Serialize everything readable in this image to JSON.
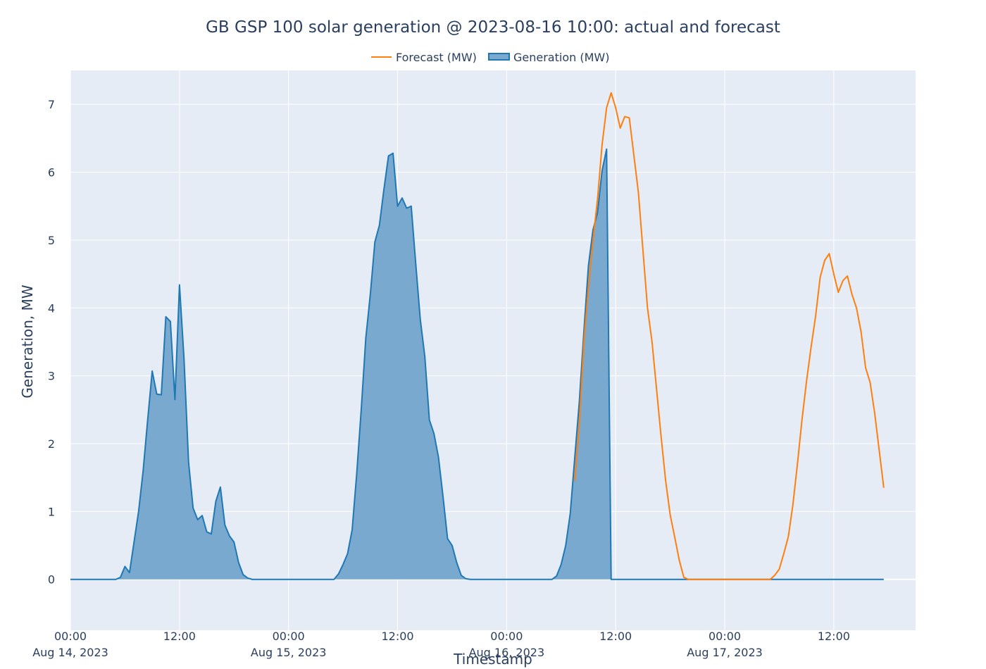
{
  "chart_data": {
    "type": "area",
    "title": "GB GSP 100 solar generation @ 2023-08-16 10:00: actual and forecast",
    "xlabel": "Timestamp",
    "ylabel": "Generation, MW",
    "ylim": [
      -0.75,
      7.5
    ],
    "xlim": [
      "2023-08-14 00:00",
      "2023-08-17 21:00"
    ],
    "grid": true,
    "legend_position": "top-center",
    "y_ticks": [
      "0",
      "1",
      "2",
      "3",
      "4",
      "5",
      "6",
      "7"
    ],
    "x_ticks": [
      {
        "time": "00:00",
        "date": "Aug 14, 2023"
      },
      {
        "time": "12:00",
        "date": ""
      },
      {
        "time": "00:00",
        "date": "Aug 15, 2023"
      },
      {
        "time": "12:00",
        "date": ""
      },
      {
        "time": "00:00",
        "date": "Aug 16, 2023"
      },
      {
        "time": "12:00",
        "date": ""
      },
      {
        "time": "00:00",
        "date": "Aug 17, 2023"
      },
      {
        "time": "12:00",
        "date": ""
      }
    ],
    "colors": {
      "plot_bg": "#e5ecf6",
      "grid": "#ffffff",
      "generation_line": "#1f77b4",
      "generation_fill": "#7aa9d0",
      "forecast_line": "#ff7f0e"
    },
    "series": [
      {
        "name": "Forecast (MW)",
        "kind": "line",
        "points": [
          [
            "2023-08-16 07:30",
            1.45
          ],
          [
            "2023-08-16 08:00",
            2.3
          ],
          [
            "2023-08-16 08:30",
            3.5
          ],
          [
            "2023-08-16 09:00",
            4.3
          ],
          [
            "2023-08-16 09:30",
            5.0
          ],
          [
            "2023-08-16 10:00",
            5.6
          ],
          [
            "2023-08-16 10:30",
            6.4
          ],
          [
            "2023-08-16 11:00",
            6.95
          ],
          [
            "2023-08-16 11:30",
            7.17
          ],
          [
            "2023-08-16 12:00",
            6.95
          ],
          [
            "2023-08-16 12:30",
            6.65
          ],
          [
            "2023-08-16 13:00",
            6.82
          ],
          [
            "2023-08-16 13:30",
            6.8
          ],
          [
            "2023-08-16 14:00",
            6.25
          ],
          [
            "2023-08-16 14:30",
            5.7
          ],
          [
            "2023-08-16 15:00",
            4.85
          ],
          [
            "2023-08-16 15:30",
            4.0
          ],
          [
            "2023-08-16 16:00",
            3.5
          ],
          [
            "2023-08-16 16:30",
            2.8
          ],
          [
            "2023-08-16 17:00",
            2.1
          ],
          [
            "2023-08-16 17:30",
            1.45
          ],
          [
            "2023-08-16 18:00",
            0.95
          ],
          [
            "2023-08-16 18:30",
            0.62
          ],
          [
            "2023-08-16 19:00",
            0.28
          ],
          [
            "2023-08-16 19:30",
            0.03
          ],
          [
            "2023-08-16 20:00",
            0.0
          ],
          [
            "2023-08-17 05:00",
            0.0
          ],
          [
            "2023-08-17 05:30",
            0.06
          ],
          [
            "2023-08-17 06:00",
            0.15
          ],
          [
            "2023-08-17 06:30",
            0.38
          ],
          [
            "2023-08-17 07:00",
            0.63
          ],
          [
            "2023-08-17 07:30",
            1.1
          ],
          [
            "2023-08-17 08:00",
            1.7
          ],
          [
            "2023-08-17 08:30",
            2.35
          ],
          [
            "2023-08-17 09:00",
            2.92
          ],
          [
            "2023-08-17 09:30",
            3.42
          ],
          [
            "2023-08-17 10:00",
            3.88
          ],
          [
            "2023-08-17 10:30",
            4.45
          ],
          [
            "2023-08-17 11:00",
            4.7
          ],
          [
            "2023-08-17 11:30",
            4.8
          ],
          [
            "2023-08-17 12:00",
            4.5
          ],
          [
            "2023-08-17 12:30",
            4.23
          ],
          [
            "2023-08-17 13:00",
            4.4
          ],
          [
            "2023-08-17 13:30",
            4.47
          ],
          [
            "2023-08-17 14:00",
            4.2
          ],
          [
            "2023-08-17 14:30",
            4.0
          ],
          [
            "2023-08-17 15:00",
            3.65
          ],
          [
            "2023-08-17 15:30",
            3.12
          ],
          [
            "2023-08-17 16:00",
            2.9
          ],
          [
            "2023-08-17 16:30",
            2.45
          ],
          [
            "2023-08-17 17:00",
            1.9
          ],
          [
            "2023-08-17 17:30",
            1.35
          ]
        ]
      },
      {
        "name": "Generation (MW)",
        "kind": "area",
        "points": [
          [
            "2023-08-14 00:00",
            0.0
          ],
          [
            "2023-08-14 05:00",
            0.0
          ],
          [
            "2023-08-14 05:30",
            0.03
          ],
          [
            "2023-08-14 06:00",
            0.19
          ],
          [
            "2023-08-14 06:30",
            0.1
          ],
          [
            "2023-08-14 07:00",
            0.55
          ],
          [
            "2023-08-14 07:30",
            1.0
          ],
          [
            "2023-08-14 08:00",
            1.6
          ],
          [
            "2023-08-14 08:30",
            2.35
          ],
          [
            "2023-08-14 09:00",
            3.07
          ],
          [
            "2023-08-14 09:30",
            2.73
          ],
          [
            "2023-08-14 10:00",
            2.72
          ],
          [
            "2023-08-14 10:30",
            3.87
          ],
          [
            "2023-08-14 11:00",
            3.8
          ],
          [
            "2023-08-14 11:30",
            2.65
          ],
          [
            "2023-08-14 12:00",
            4.34
          ],
          [
            "2023-08-14 12:30",
            3.25
          ],
          [
            "2023-08-14 13:00",
            1.73
          ],
          [
            "2023-08-14 13:30",
            1.05
          ],
          [
            "2023-08-14 14:00",
            0.88
          ],
          [
            "2023-08-14 14:30",
            0.94
          ],
          [
            "2023-08-14 15:00",
            0.7
          ],
          [
            "2023-08-14 15:30",
            0.67
          ],
          [
            "2023-08-14 16:00",
            1.15
          ],
          [
            "2023-08-14 16:30",
            1.36
          ],
          [
            "2023-08-14 17:00",
            0.8
          ],
          [
            "2023-08-14 17:30",
            0.64
          ],
          [
            "2023-08-14 18:00",
            0.55
          ],
          [
            "2023-08-14 18:30",
            0.25
          ],
          [
            "2023-08-14 19:00",
            0.07
          ],
          [
            "2023-08-14 19:30",
            0.02
          ],
          [
            "2023-08-14 20:00",
            0.0
          ],
          [
            "2023-08-15 05:00",
            0.0
          ],
          [
            "2023-08-15 05:30",
            0.08
          ],
          [
            "2023-08-15 06:00",
            0.22
          ],
          [
            "2023-08-15 06:30",
            0.38
          ],
          [
            "2023-08-15 07:00",
            0.73
          ],
          [
            "2023-08-15 07:30",
            1.55
          ],
          [
            "2023-08-15 08:00",
            2.5
          ],
          [
            "2023-08-15 08:30",
            3.55
          ],
          [
            "2023-08-15 09:00",
            4.2
          ],
          [
            "2023-08-15 09:30",
            4.97
          ],
          [
            "2023-08-15 10:00",
            5.22
          ],
          [
            "2023-08-15 10:30",
            5.75
          ],
          [
            "2023-08-15 11:00",
            6.24
          ],
          [
            "2023-08-15 11:30",
            6.28
          ],
          [
            "2023-08-15 12:00",
            5.5
          ],
          [
            "2023-08-15 12:30",
            5.62
          ],
          [
            "2023-08-15 13:00",
            5.47
          ],
          [
            "2023-08-15 13:30",
            5.5
          ],
          [
            "2023-08-15 14:00",
            4.65
          ],
          [
            "2023-08-15 14:30",
            3.83
          ],
          [
            "2023-08-15 15:00",
            3.28
          ],
          [
            "2023-08-15 15:30",
            2.35
          ],
          [
            "2023-08-15 16:00",
            2.15
          ],
          [
            "2023-08-15 16:30",
            1.8
          ],
          [
            "2023-08-15 17:00",
            1.22
          ],
          [
            "2023-08-15 17:30",
            0.6
          ],
          [
            "2023-08-15 18:00",
            0.5
          ],
          [
            "2023-08-15 18:30",
            0.25
          ],
          [
            "2023-08-15 19:00",
            0.06
          ],
          [
            "2023-08-15 19:30",
            0.01
          ],
          [
            "2023-08-15 20:00",
            0.0
          ],
          [
            "2023-08-16 05:00",
            0.0
          ],
          [
            "2023-08-16 05:30",
            0.05
          ],
          [
            "2023-08-16 06:00",
            0.22
          ],
          [
            "2023-08-16 06:30",
            0.5
          ],
          [
            "2023-08-16 07:00",
            0.97
          ],
          [
            "2023-08-16 07:30",
            1.8
          ],
          [
            "2023-08-16 08:00",
            2.62
          ],
          [
            "2023-08-16 08:30",
            3.65
          ],
          [
            "2023-08-16 09:00",
            4.62
          ],
          [
            "2023-08-16 09:30",
            5.15
          ],
          [
            "2023-08-16 10:00",
            5.4
          ],
          [
            "2023-08-16 10:30",
            6.02
          ],
          [
            "2023-08-16 11:00",
            6.34
          ],
          [
            "2023-08-16 11:30",
            0.0
          ],
          [
            "2023-08-17 17:30",
            0.0
          ]
        ]
      }
    ]
  }
}
